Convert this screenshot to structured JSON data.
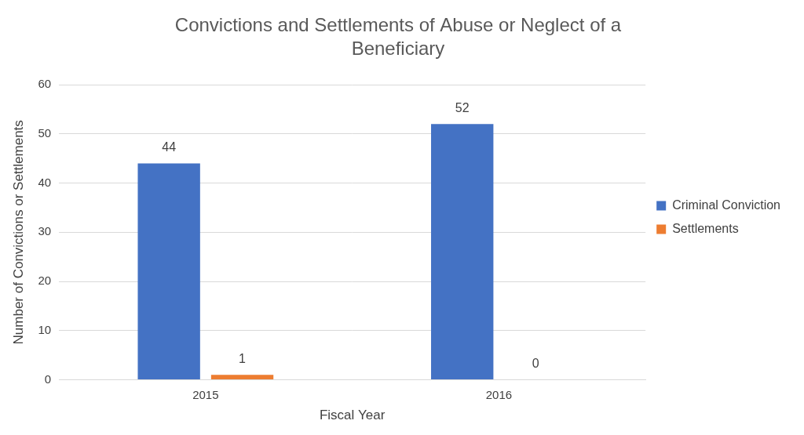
{
  "chart_data": {
    "type": "bar",
    "title": "Convictions and Settlements of Abuse or Neglect of a Beneficiary",
    "x_label": "Fiscal Year",
    "y_label": "Number of Convictions or Settlements",
    "categories": [
      "2015",
      "2016"
    ],
    "series": [
      {
        "name": "Criminal Conviction",
        "color": "#4472c4",
        "values": [
          44,
          52
        ]
      },
      {
        "name": "Settlements",
        "color": "#ed7d31",
        "values": [
          1,
          0
        ]
      }
    ],
    "ylim": [
      0,
      60
    ],
    "yticks": [
      0,
      10,
      20,
      30,
      40,
      50,
      60
    ],
    "grid": true,
    "legend": "right",
    "data_labels": true
  }
}
